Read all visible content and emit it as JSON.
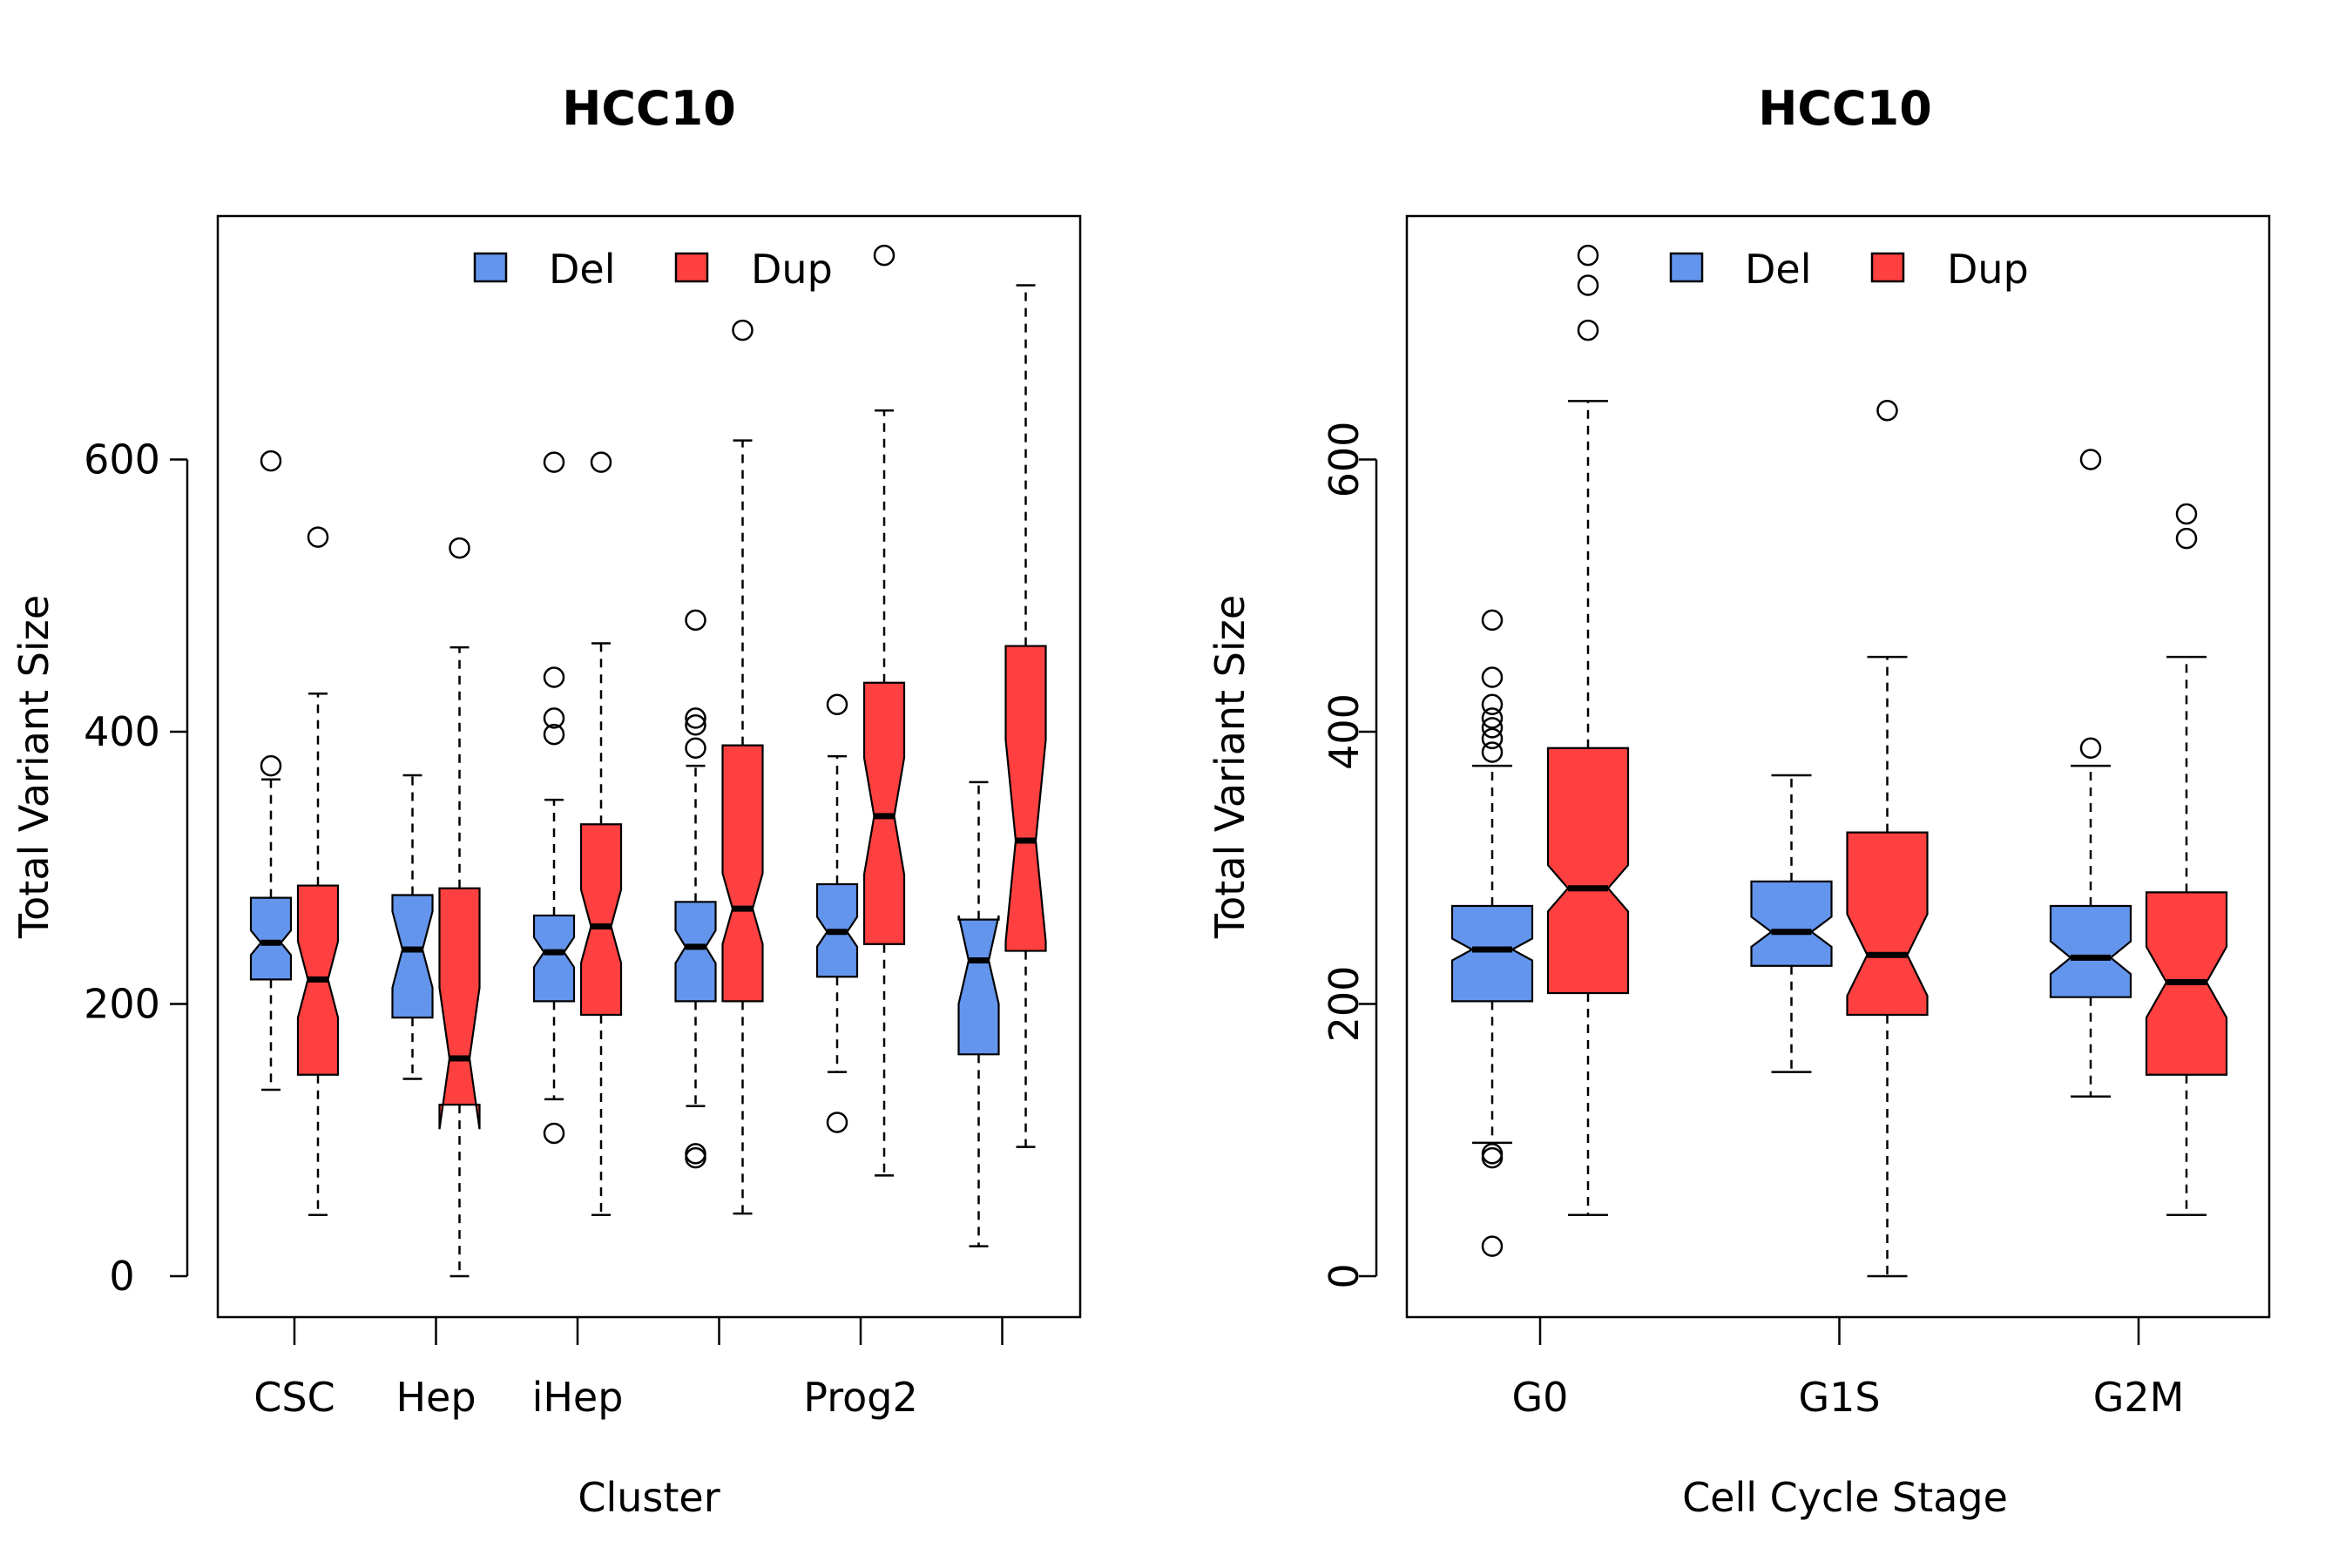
{
  "chart_data": [
    {
      "type": "box",
      "notched": true,
      "title": "HCC10",
      "xlabel": "Cluster",
      "ylabel": "Total Variant Size",
      "ylim": [
        -30,
        780
      ],
      "yticks": [
        0,
        200,
        400,
        600
      ],
      "categories": [
        "CSC",
        "Hep",
        "iHep",
        "",
        "Prog2",
        ""
      ],
      "legend": {
        "position": "top",
        "entries": [
          "Del",
          "Dup"
        ]
      },
      "series": [
        {
          "name": "Del",
          "color": "#6495ED",
          "boxes": [
            {
              "whisker_low": 137,
              "q1": 218,
              "median": 245,
              "q3": 278,
              "whisker_high": 365,
              "notch_low": 236,
              "notch_high": 254,
              "outliers": [
                375,
                599
              ]
            },
            {
              "whisker_low": 145,
              "q1": 190,
              "median": 240,
              "q3": 280,
              "whisker_high": 368,
              "notch_low": 212,
              "notch_high": 268,
              "outliers": []
            },
            {
              "whisker_low": 130,
              "q1": 202,
              "median": 238,
              "q3": 265,
              "whisker_high": 350,
              "notch_low": 227,
              "notch_high": 249,
              "outliers": [
                105,
                398,
                410,
                440,
                598
              ]
            },
            {
              "whisker_low": 125,
              "q1": 202,
              "median": 242,
              "q3": 275,
              "whisker_high": 375,
              "notch_low": 230,
              "notch_high": 254,
              "outliers": [
                87,
                90,
                388,
                405,
                410,
                482
              ]
            },
            {
              "whisker_low": 150,
              "q1": 220,
              "median": 253,
              "q3": 288,
              "whisker_high": 382,
              "notch_low": 242,
              "notch_high": 264,
              "outliers": [
                113,
                420
              ]
            },
            {
              "whisker_low": 22,
              "q1": 163,
              "median": 232,
              "q3": 262,
              "whisker_high": 363,
              "notch_low": 200,
              "notch_high": 265,
              "outliers": []
            }
          ]
        },
        {
          "name": "Dup",
          "color": "#FF4040",
          "boxes": [
            {
              "whisker_low": 45,
              "q1": 148,
              "median": 218,
              "q3": 287,
              "whisker_high": 428,
              "notch_low": 190,
              "notch_high": 246,
              "outliers": [
                543
              ]
            },
            {
              "whisker_low": 0,
              "q1": 126,
              "median": 160,
              "q3": 285,
              "whisker_high": 462,
              "notch_low": 108,
              "notch_high": 212,
              "outliers": [
                535
              ]
            },
            {
              "whisker_low": 45,
              "q1": 192,
              "median": 257,
              "q3": 332,
              "whisker_high": 465,
              "notch_low": 230,
              "notch_high": 284,
              "outliers": [
                598
              ]
            },
            {
              "whisker_low": 46,
              "q1": 202,
              "median": 270,
              "q3": 390,
              "whisker_high": 614,
              "notch_low": 244,
              "notch_high": 296,
              "outliers": [
                695
              ]
            },
            {
              "whisker_low": 74,
              "q1": 244,
              "median": 338,
              "q3": 436,
              "whisker_high": 636,
              "notch_low": 295,
              "notch_high": 381,
              "outliers": [
                750
              ]
            },
            {
              "whisker_low": 95,
              "q1": 239,
              "median": 320,
              "q3": 463,
              "whisker_high": 728,
              "notch_low": 246,
              "notch_high": 394,
              "outliers": []
            }
          ]
        }
      ]
    },
    {
      "type": "box",
      "notched": true,
      "title": "HCC10",
      "xlabel": "Cell Cycle Stage",
      "ylabel": "Total Variant Size",
      "ylim": [
        -30,
        780
      ],
      "yticks": [
        0,
        200,
        400,
        600
      ],
      "categories": [
        "G0",
        "G1S",
        "G2M"
      ],
      "legend": {
        "position": "top",
        "entries": [
          "Del",
          "Dup"
        ]
      },
      "series": [
        {
          "name": "Del",
          "color": "#6495ED",
          "boxes": [
            {
              "whisker_low": 98,
              "q1": 202,
              "median": 240,
              "q3": 272,
              "whisker_high": 375,
              "notch_low": 232,
              "notch_high": 248,
              "outliers": [
                22,
                87,
                90,
                385,
                395,
                403,
                410,
                420,
                440,
                482
              ]
            },
            {
              "whisker_low": 150,
              "q1": 228,
              "median": 253,
              "q3": 290,
              "whisker_high": 368,
              "notch_low": 242,
              "notch_high": 264,
              "outliers": []
            },
            {
              "whisker_low": 132,
              "q1": 205,
              "median": 234,
              "q3": 272,
              "whisker_high": 375,
              "notch_low": 222,
              "notch_high": 246,
              "outliers": [
                388,
                600
              ]
            }
          ]
        },
        {
          "name": "Dup",
          "color": "#FF4040",
          "boxes": [
            {
              "whisker_low": 45,
              "q1": 208,
              "median": 285,
              "q3": 388,
              "whisker_high": 643,
              "notch_low": 268,
              "notch_high": 302,
              "outliers": [
                695,
                728,
                750
              ]
            },
            {
              "whisker_low": 0,
              "q1": 192,
              "median": 236,
              "q3": 326,
              "whisker_high": 455,
              "notch_low": 206,
              "notch_high": 266,
              "outliers": [
                636
              ]
            },
            {
              "whisker_low": 45,
              "q1": 148,
              "median": 216,
              "q3": 282,
              "whisker_high": 455,
              "notch_low": 190,
              "notch_high": 242,
              "outliers": [
                542,
                560
              ]
            }
          ]
        }
      ]
    }
  ]
}
